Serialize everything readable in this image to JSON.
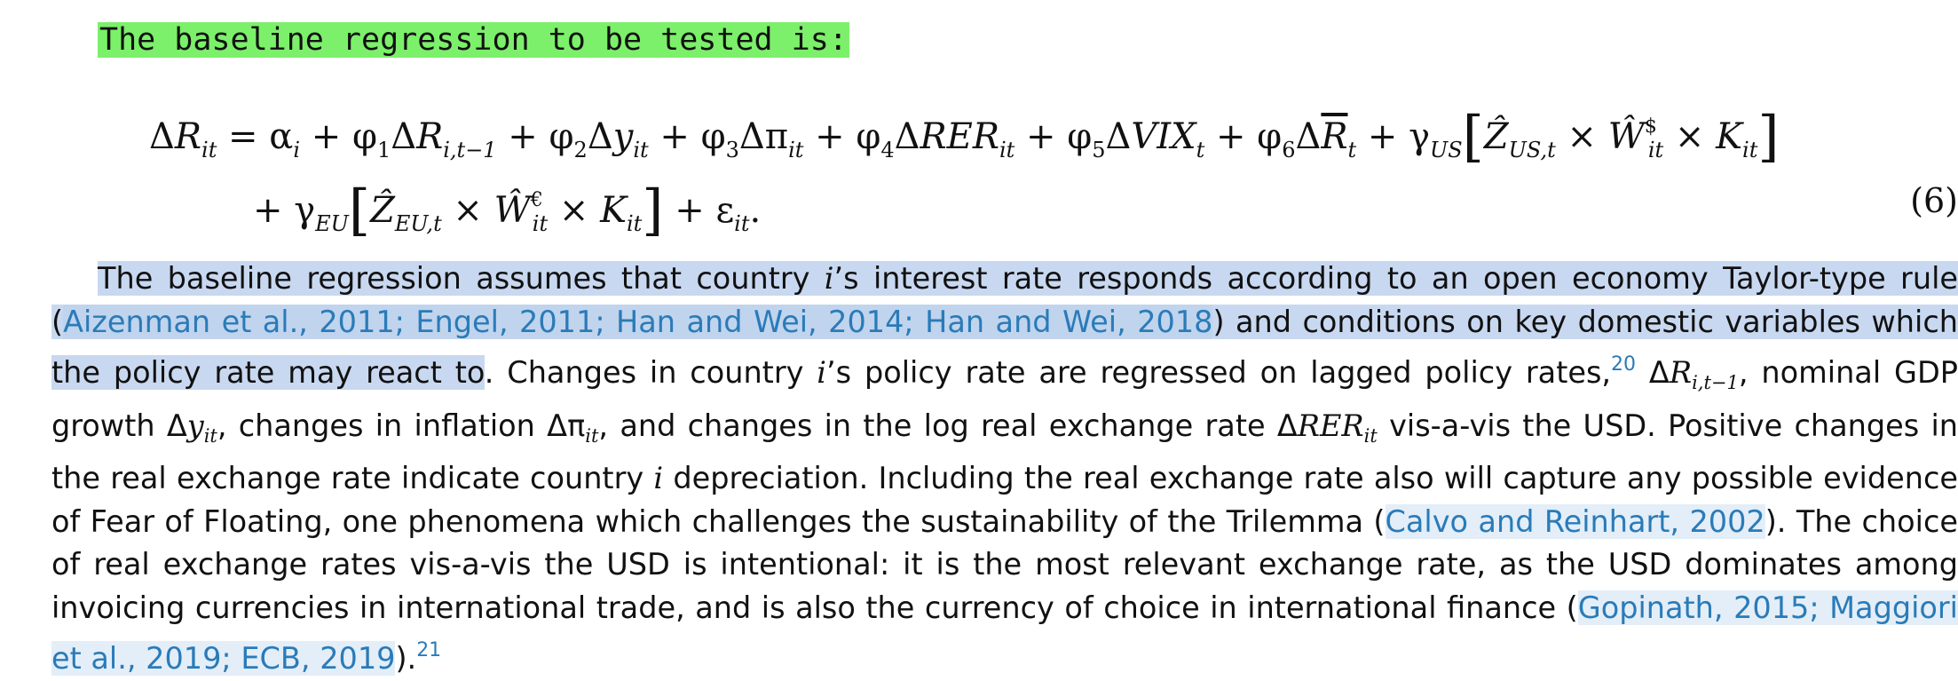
{
  "heading": "The baseline regression to be tested is:",
  "equation": {
    "number": "(6)"
  },
  "paragraph": {
    "s1": "The baseline regression assumes that country ",
    "s2": "’s interest rate responds according to an open economy Taylor-type rule",
    "s3": " and conditions on key domestic variables which the policy rate may react to",
    "s4": ". Changes in country ",
    "s5": "’s policy rate are regressed on lagged policy rates,",
    "s6": ", nominal GDP growth ",
    "s7": ", changes in inflation ",
    "s8": ", and changes in the log real exchange rate ",
    "s9": " vis-a-vis the USD. Positive changes in the real exchange rate indicate country ",
    "s10": " depreciation. Including the real exchange rate also will capture any possible evidence of Fear of Floating, one phenomena which challenges the sustainability of the Trilemma (",
    "s11": "). The choice of real exchange rates vis-a-vis the USD is intentional: it is the most relevant exchange rate, as the USD dominates among invoicing currencies in international trade, and is also the currency of choice in international finance (",
    "s12": ").",
    "cite_group1": "Aizenman et al., 2011; Engel, 2011; Han and Wei, 2014; Han and Wei, 2018",
    "cite_calvo": "Calvo and Reinhart, 2002",
    "cite_group2": "Gopinath, 2015; Maggiori et al., 2019; ECB, 2019",
    "fn20": "20",
    "fn21": "21"
  }
}
